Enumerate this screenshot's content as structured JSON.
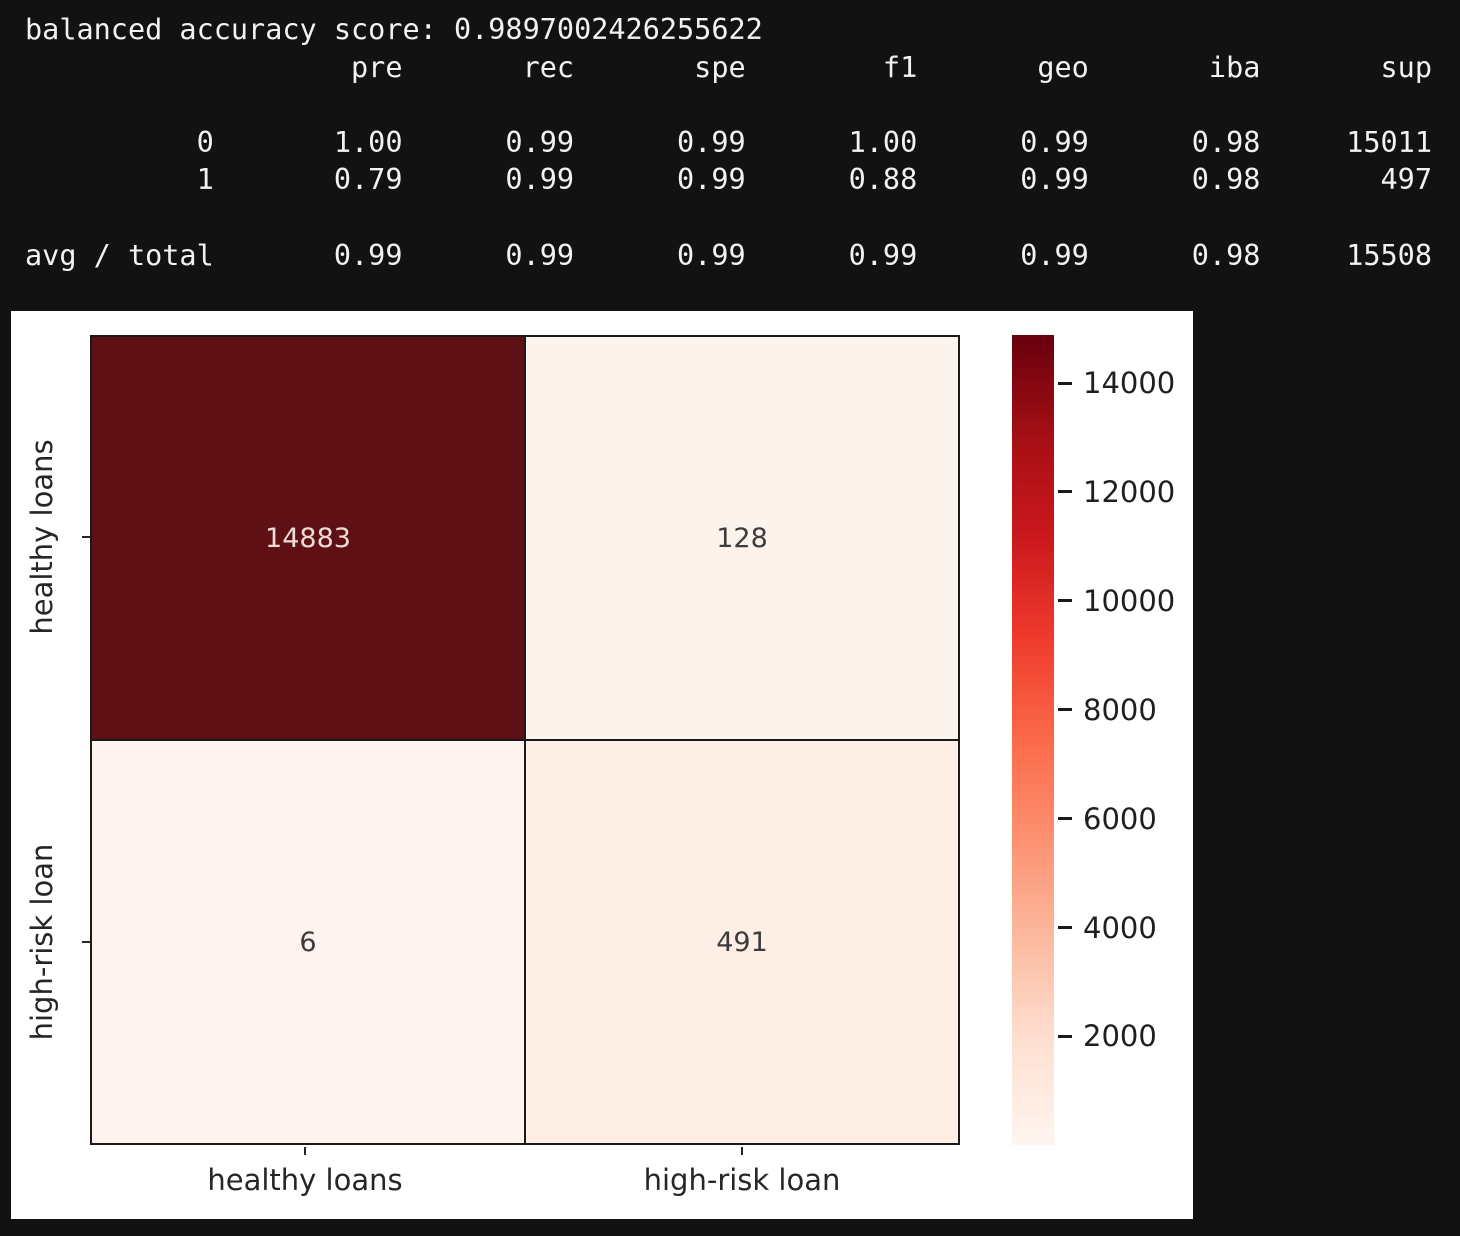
{
  "terminal": {
    "balanced_accuracy_label": "balanced accuracy score:",
    "balanced_accuracy_value": "0.9897002426255622",
    "report": {
      "headers": [
        "pre",
        "rec",
        "spe",
        "f1",
        "geo",
        "iba",
        "sup"
      ],
      "rows": [
        {
          "label": "0",
          "values": [
            "1.00",
            "0.99",
            "0.99",
            "1.00",
            "0.99",
            "0.98",
            "15011"
          ]
        },
        {
          "label": "1",
          "values": [
            "0.79",
            "0.99",
            "0.99",
            "0.88",
            "0.99",
            "0.98",
            "497"
          ]
        },
        {
          "label": "avg / total",
          "values": [
            "0.99",
            "0.99",
            "0.99",
            "0.99",
            "0.99",
            "0.98",
            "15508"
          ]
        }
      ]
    },
    "colors": {
      "background": "#121212",
      "text": "#f2f2f2"
    }
  },
  "chart_data": {
    "type": "heatmap",
    "x_tick_labels": [
      "healthy loans",
      "high-risk loan"
    ],
    "y_tick_labels": [
      "healthy loans",
      "high-risk loan"
    ],
    "matrix": [
      [
        14883,
        128
      ],
      [
        6,
        491
      ]
    ],
    "cell_labels": [
      [
        "14883",
        "128"
      ],
      [
        "6",
        "491"
      ]
    ],
    "cell_colors": [
      [
        "#5e1014",
        "#fdf3ed"
      ],
      [
        "#fef3ef",
        "#fdefe6"
      ]
    ],
    "cell_text_colors": [
      [
        "#ecdcd7",
        "#3c3c3c"
      ],
      [
        "#3c3c3c",
        "#3c3c3c"
      ]
    ],
    "colormap": "Reds",
    "colormap_stops": [
      "#fff5f0",
      "#fee0d2",
      "#fcbba1",
      "#fc9272",
      "#fb6a4a",
      "#ef3b2c",
      "#cb181d",
      "#a50f15",
      "#67000d"
    ],
    "colorbar_ticks": [
      14000,
      12000,
      10000,
      8000,
      6000,
      4000,
      2000
    ],
    "value_range": [
      6,
      14883
    ],
    "grid_on": true,
    "grid_line_color": "#1a1a1a",
    "figure_background": "#ffffff",
    "legend_position": "right-colorbar"
  }
}
